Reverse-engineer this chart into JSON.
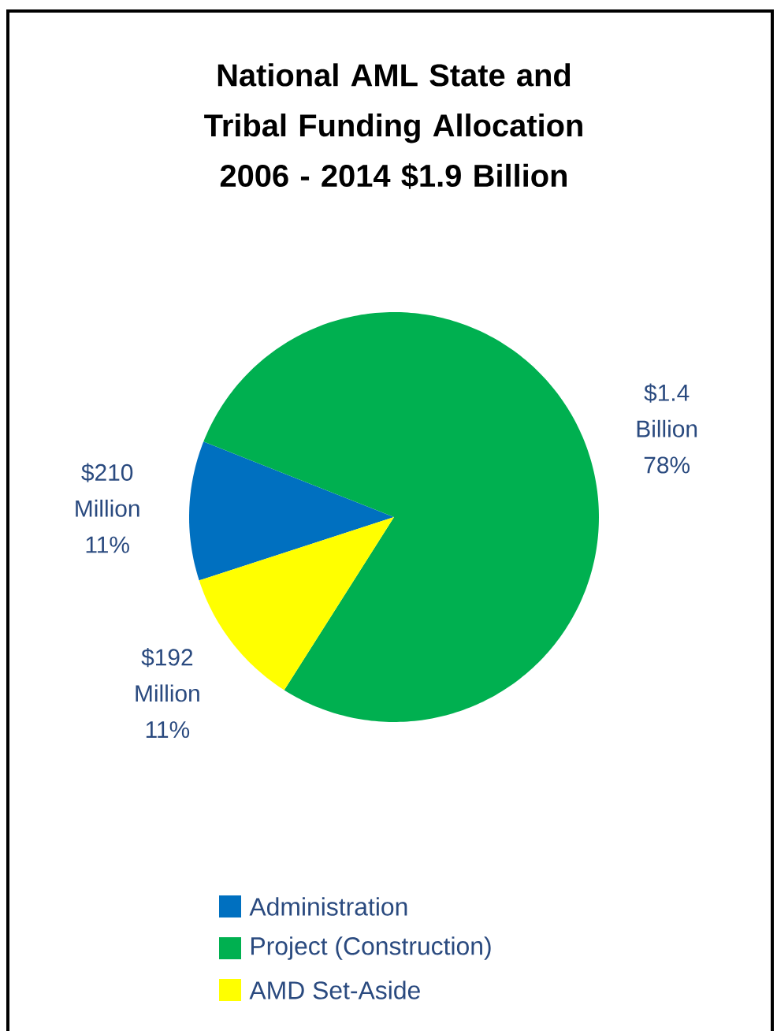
{
  "chart_data": {
    "type": "pie",
    "title": "National AML State and Tribal Funding Allocation 2006 - 2014 $1.9 Billion",
    "categories": [
      "Administration",
      "Project (Construction)",
      "AMD Set-Aside"
    ],
    "values": [
      11,
      78,
      11
    ],
    "colors": [
      "#0070c0",
      "#00b050",
      "#ffff00"
    ],
    "value_labels": [
      "$210 Million 11%",
      "$1.4 Billion 78%",
      "$192 Million 11%"
    ],
    "legend": "bottom"
  }
}
